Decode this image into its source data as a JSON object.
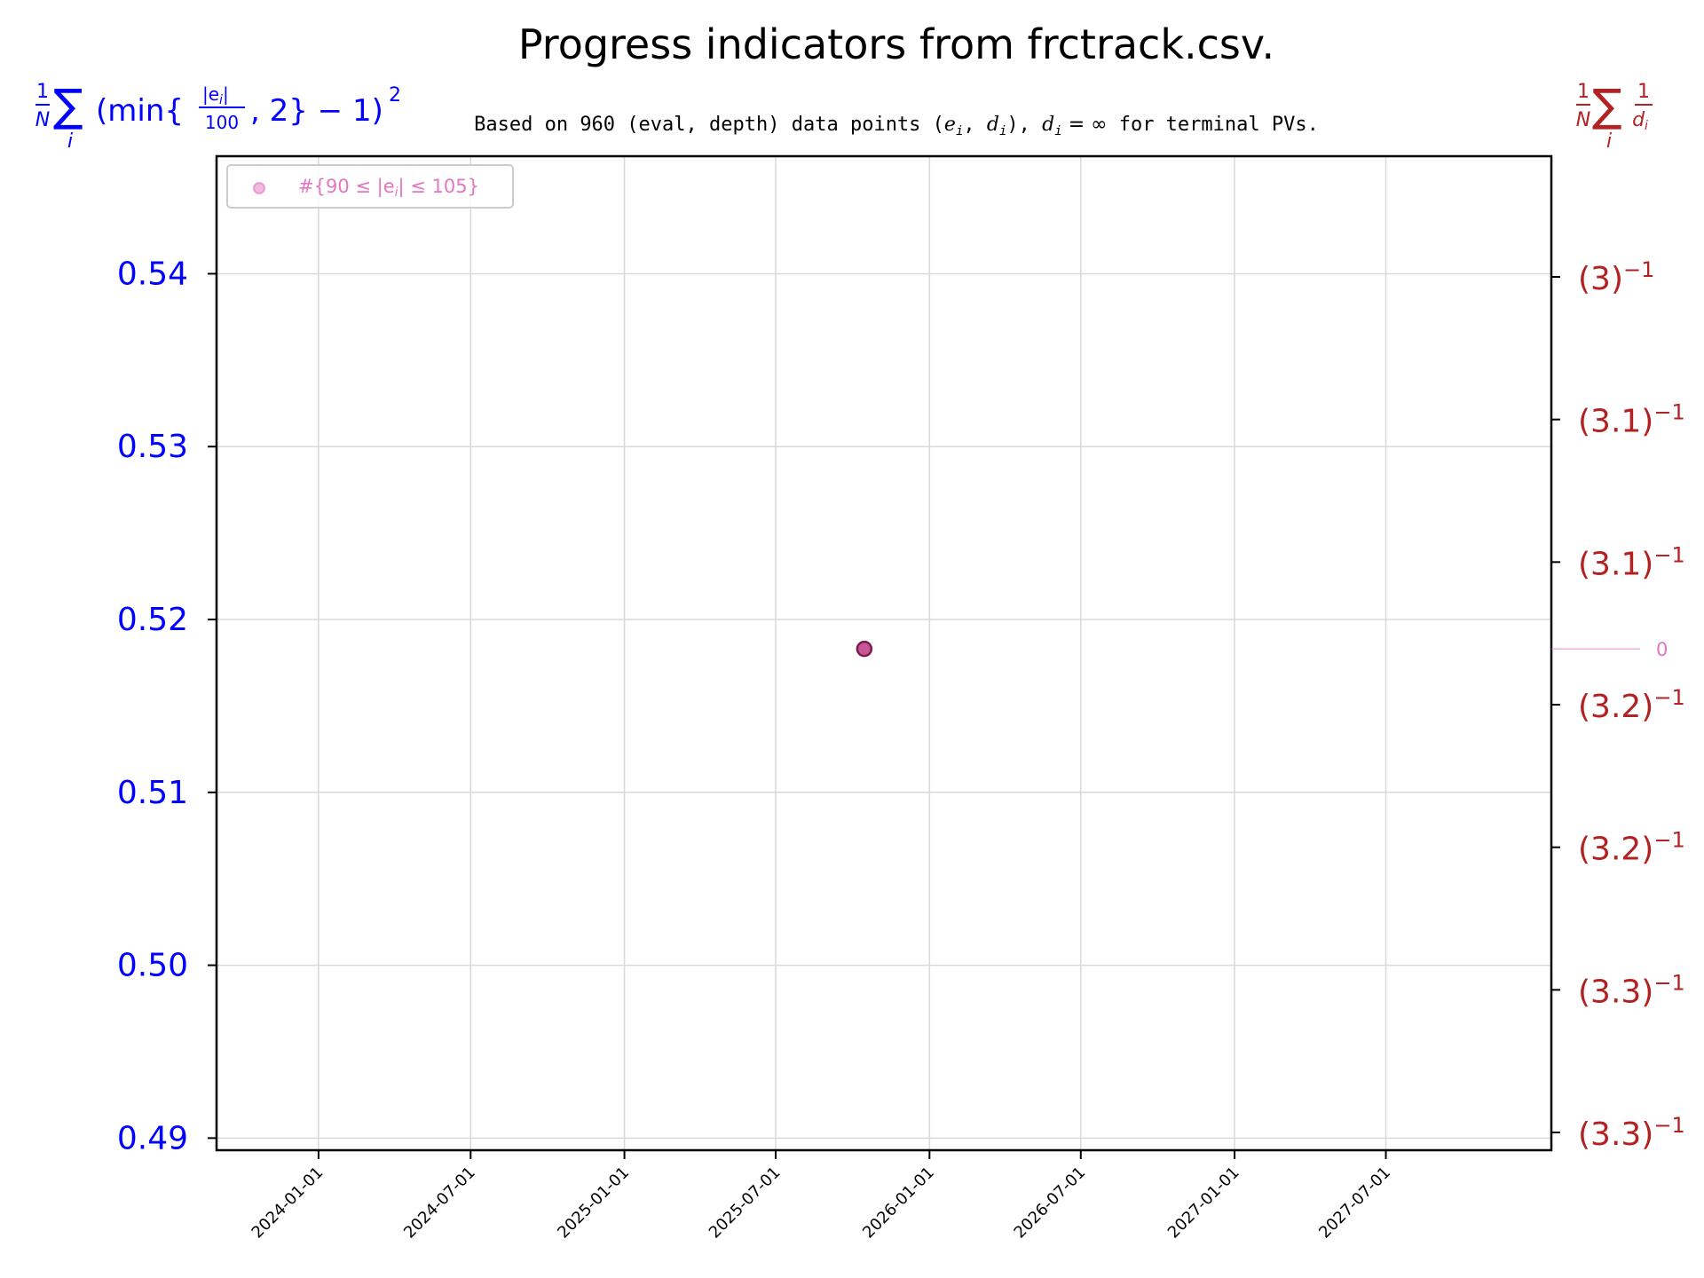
{
  "chart_data": {
    "type": "scatter",
    "title": "Progress indicators from frctrack.csv.",
    "subtitle": {
      "prefix": "Based on 960 (eval, depth) data points (",
      "math1": "e",
      "sep1": "i",
      "comma": ", ",
      "math2": "d",
      "sep2": "i",
      "mid": "),  ",
      "dvar": "d",
      "dsub": "i",
      "eqinf": " = ∞",
      "suffix": " for terminal PVs."
    },
    "left_axis_label": {
      "frac_num": "1",
      "frac_den": "N",
      "sum": "∑",
      "sum_sub": "i",
      "body_open": "(min{",
      "inner_num": "|e",
      "inner_num_sub": "i",
      "inner_num_close": "|",
      "inner_den": "100",
      "body_close": ", 2} − 1)",
      "power": "2"
    },
    "right_axis_label": {
      "frac_num": "1",
      "frac_den": "N",
      "sum": "∑",
      "sum_sub": "i",
      "inner_num": "1",
      "inner_den": "d",
      "inner_den_sub": "i"
    },
    "x_axis": {
      "ticks": [
        "2024-01-01",
        "2024-07-01",
        "2025-01-01",
        "2025-07-01",
        "2026-01-01",
        "2026-07-01",
        "2027-01-01",
        "2027-07-01"
      ],
      "range": [
        "2023-09-01",
        "2028-01-15"
      ]
    },
    "y_left": {
      "ticks": [
        0.49,
        0.5,
        0.51,
        0.52,
        0.53,
        0.54
      ],
      "tick_labels": [
        "0.49",
        "0.50",
        "0.51",
        "0.52",
        "0.53",
        "0.54"
      ],
      "range": [
        0.4893,
        0.5468
      ],
      "color": "#0000ff"
    },
    "y_right": {
      "tick_labels": [
        {
          "base": "(3)",
          "exp": "−1"
        },
        {
          "base": "(3.1)",
          "exp": "−1"
        },
        {
          "base": "(3.1)",
          "exp": "−1"
        },
        {
          "base": "(3.2)",
          "exp": "−1"
        },
        {
          "base": "(3.2)",
          "exp": "−1"
        },
        {
          "base": "(3.3)",
          "exp": "−1"
        },
        {
          "base": "(3.3)",
          "exp": "−1"
        }
      ],
      "color": "#b22222"
    },
    "secondary_marker": {
      "label": "0",
      "y_level": 0.5183,
      "color": "#e377c2"
    },
    "legend": {
      "position": "top-left",
      "label": "#{90 ≤ |e",
      "label_sub": "i",
      "label_end": "| ≤ 105}",
      "color": "#e377c2"
    },
    "series": [
      {
        "points": [
          {
            "x": "2025-10-15",
            "y": 0.5183
          }
        ],
        "color": "#9c2a6a"
      }
    ],
    "grid": true
  }
}
